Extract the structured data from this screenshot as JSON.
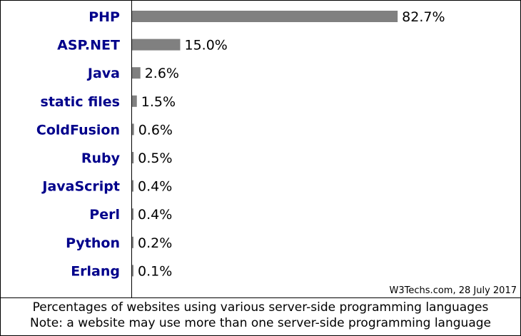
{
  "colors": {
    "bar": "#808080",
    "label": "#00008b"
  },
  "source": "W3Techs.com, 28 July 2017",
  "caption": {
    "line1": "Percentages of websites using various server-side programming languages",
    "line2": "Note: a website may use more than one server-side programming language"
  },
  "chart_data": {
    "type": "bar",
    "orientation": "horizontal",
    "categories": [
      "PHP",
      "ASP.NET",
      "Java",
      "static files",
      "ColdFusion",
      "Ruby",
      "JavaScript",
      "Perl",
      "Python",
      "Erlang"
    ],
    "values": [
      82.7,
      15.0,
      2.6,
      1.5,
      0.6,
      0.5,
      0.4,
      0.4,
      0.2,
      0.1
    ],
    "value_labels": [
      "82.7%",
      "15.0%",
      "2.6%",
      "1.5%",
      "0.6%",
      "0.5%",
      "0.4%",
      "0.4%",
      "0.2%",
      "0.1%"
    ],
    "xlim": [
      0,
      100
    ],
    "grid": false,
    "legend": "none"
  }
}
